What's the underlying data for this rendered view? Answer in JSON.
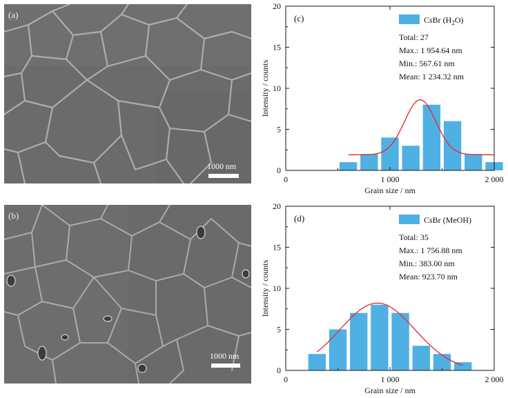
{
  "panels": {
    "a": {
      "label": "(a)",
      "scale_bar": "1000 nm"
    },
    "b": {
      "label": "(b)",
      "scale_bar": "1000 nm"
    }
  },
  "chart_data": [
    {
      "type": "bar",
      "panel": "(c)",
      "legend": "CsBr (H2O)",
      "stats": [
        "Total: 27",
        "Max.: 1 954.64 nm",
        "Min.: 567.61 nm",
        "Mean: 1 234.32 nm"
      ],
      "x": [
        600,
        800,
        1000,
        1200,
        1400,
        1600,
        1800,
        2000
      ],
      "values": [
        1,
        2,
        4,
        3,
        8,
        6,
        2,
        1
      ],
      "fit_curve": {
        "y0": 1.9,
        "amplitude": 6.7,
        "center": 1290,
        "sigma": 150,
        "x_range": [
          600,
          2000
        ]
      },
      "xlabel": "Grain size / nm",
      "ylabel": "Intensity / counts",
      "xlim": [
        0,
        2000
      ],
      "ylim": [
        0,
        20
      ],
      "xticks": [
        0,
        1000,
        2000
      ],
      "xtick_labels": [
        "0",
        "1 000",
        "2 000"
      ],
      "yticks": [
        0,
        5,
        10,
        15,
        20
      ],
      "ytick_labels": [
        "0",
        "5",
        "10",
        "15",
        "20"
      ],
      "bar_color": "#4fb0e4",
      "curve_color": "#e53030",
      "legend_position": "top-right"
    },
    {
      "type": "bar",
      "panel": "(d)",
      "legend": "CsBr (MeOH)",
      "stats": [
        "Total: 35",
        "Max.: 1 756.88 nm",
        "Min.: 383.00 nm",
        "Mean: 923.70 nm"
      ],
      "x": [
        300,
        500,
        700,
        900,
        1100,
        1300,
        1500,
        1700
      ],
      "values": [
        2,
        5,
        7,
        8,
        7,
        3,
        2,
        1
      ],
      "fit_curve": {
        "y0": 0,
        "amplitude": 8.2,
        "center": 880,
        "sigma": 360,
        "x_range": [
          300,
          1700
        ]
      },
      "xlabel": "Grain size / nm",
      "ylabel": "Intensity / counts",
      "xlim": [
        0,
        2000
      ],
      "ylim": [
        0,
        20
      ],
      "xticks": [
        0,
        1000,
        2000
      ],
      "xtick_labels": [
        "0",
        "1 000",
        "2 000"
      ],
      "yticks": [
        0,
        5,
        10,
        15,
        20
      ],
      "ytick_labels": [
        "0",
        "5",
        "10",
        "15",
        "20"
      ],
      "bar_color": "#4fb0e4",
      "curve_color": "#e53030",
      "legend_position": "top-right"
    }
  ]
}
